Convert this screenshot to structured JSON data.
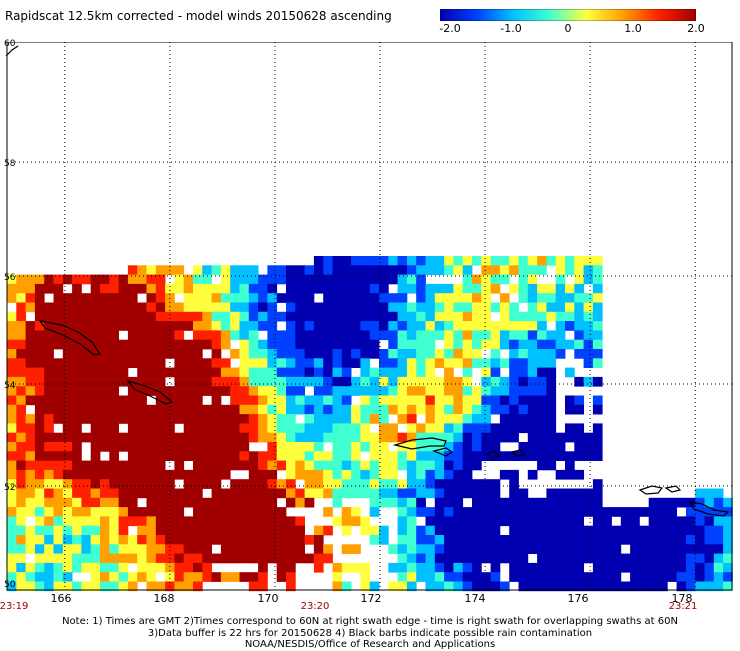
{
  "title": "Rapidscat 12.5km corrected - model winds 20150628 ascending",
  "colorbar": {
    "ticks": [
      "-2.0",
      "-1.0",
      "0",
      "1.0",
      "2.0"
    ],
    "range": [
      -2.0,
      2.0
    ],
    "colors": [
      "#0000b0",
      "#0040ff",
      "#00c0ff",
      "#40ffd0",
      "#ffff40",
      "#ffa000",
      "#ff2000",
      "#a00000"
    ]
  },
  "map": {
    "lat_labels": [
      "60",
      "58",
      "56",
      "54",
      "52",
      "50"
    ],
    "lat_range": [
      50,
      60
    ],
    "lon_labels": [
      "166",
      "168",
      "170",
      "172",
      "174",
      "176",
      "178"
    ],
    "lon_range": [
      164.9,
      178.7
    ],
    "time_labels": [
      {
        "text": "23:19",
        "lon": 165.0
      },
      {
        "text": "23:20",
        "lon": 170.8
      },
      {
        "text": "23:21",
        "lon": 178.0
      }
    ],
    "grid_style": "dotted",
    "coastline_color": "#000000",
    "missing_color": "#ffffff"
  },
  "notes": [
    "Note: 1) Times are GMT 2)Times correspond to 60N at right swath edge - time is right swath for overlapping swaths at 60N",
    "3)Data buffer is 22 hrs for 20150628 4) Black barbs indicate possible rain contamination",
    "NOAA/NESDIS/Office of Research and Applications"
  ]
}
